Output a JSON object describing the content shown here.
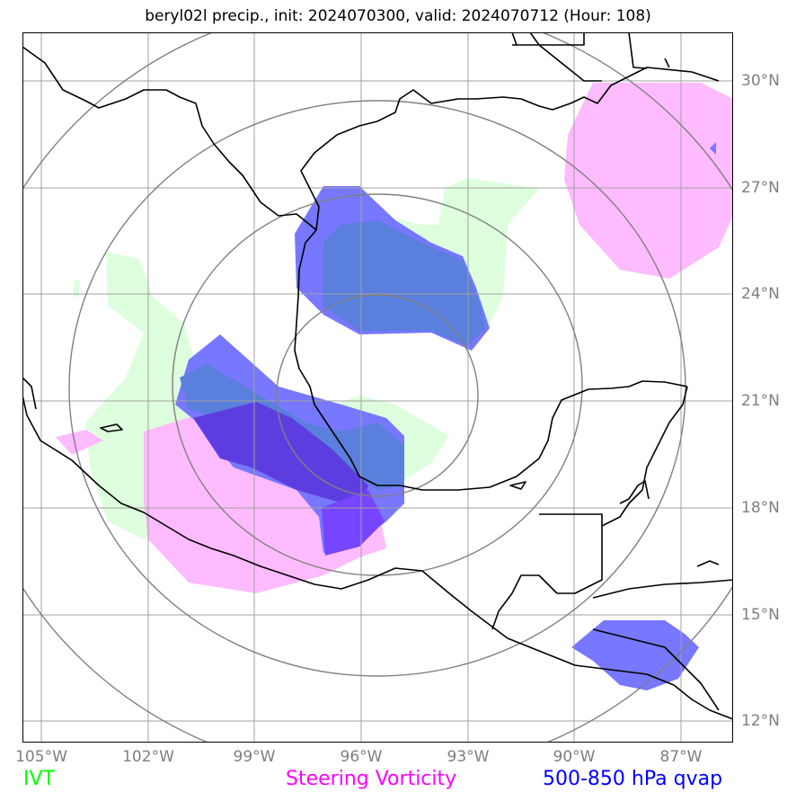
{
  "title": "beryl02l precip., init: 2024070300, valid: 2024070712 (Hour: 108)",
  "x_ticks": [
    "105°W",
    "102°W",
    "99°W",
    "96°W",
    "93°W",
    "90°W",
    "87°W"
  ],
  "y_ticks": [
    "30°N",
    "27°N",
    "24°N",
    "21°N",
    "18°N",
    "15°N",
    "12°N"
  ],
  "legend": {
    "ivt": {
      "label": "IVT",
      "color": "#00ff00"
    },
    "vorticity": {
      "label": "Steering Vorticity",
      "color": "#ff00ff"
    },
    "qvap": {
      "label": "500-850 hPa qvap",
      "color": "#0000ff"
    }
  },
  "colors": {
    "ivt_fill": "#ddffdd",
    "vorticity_fill": "#ffbbff",
    "qvap_fill": "#7777ff",
    "qvap_overlap_green": "#5a7fdc",
    "qvap_overlap_pink": "#7744ff",
    "gridline": "#a0a0a0",
    "range_rings": "#808080",
    "coastline": "#000000"
  },
  "map_extent": {
    "lon_min": -105.5,
    "lon_max": -85.5,
    "lat_min": 11.5,
    "lat_max": 31.3
  }
}
